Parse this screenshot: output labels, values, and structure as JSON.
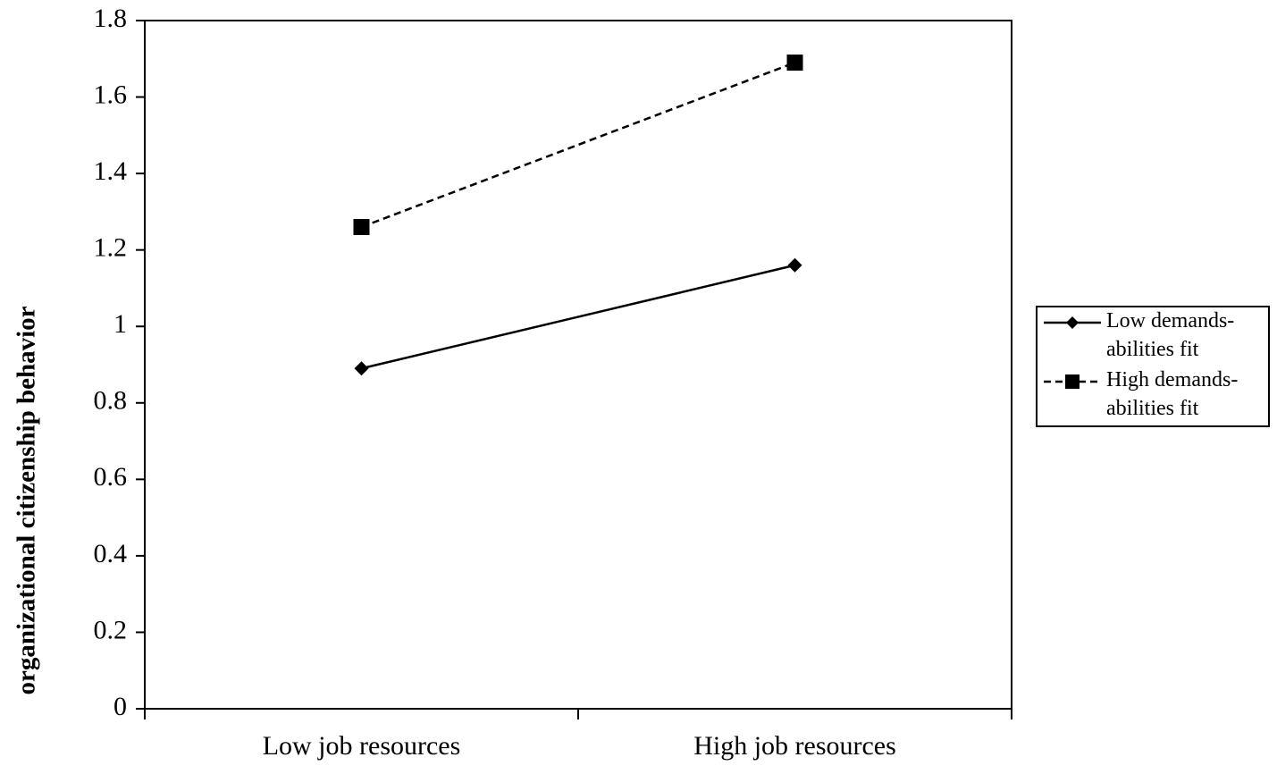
{
  "chart_data": {
    "type": "line",
    "y_label": "organizational citizenship behavior",
    "categories": [
      "Low job resources",
      "High job resources"
    ],
    "series": [
      {
        "name": "Low demands-abilities fit",
        "color": "#000000",
        "linestyle": "solid",
        "marker": "diamond",
        "values": [
          0.89,
          1.16
        ]
      },
      {
        "name": "High demands-abilities fit",
        "color": "#000000",
        "linestyle": "dashed",
        "marker": "square",
        "values": [
          1.26,
          1.69
        ]
      }
    ],
    "ylim": [
      0,
      1.8
    ],
    "yticks": [
      0,
      0.2,
      0.4,
      0.6,
      0.8,
      1,
      1.2,
      1.4,
      1.6,
      1.8
    ],
    "grid": false,
    "legend": "right"
  }
}
